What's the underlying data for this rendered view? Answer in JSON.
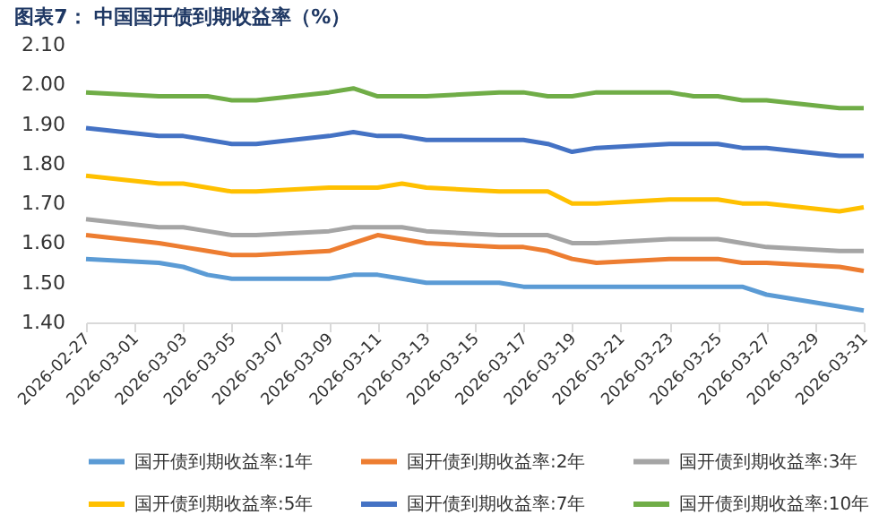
{
  "chart_data": {
    "type": "line",
    "title": "图表7：  中国国开债到期收益率（%）",
    "x": [
      "2026-02-27",
      "2026-03-02",
      "2026-03-03",
      "2026-03-04",
      "2026-03-05",
      "2026-03-06",
      "2026-03-09",
      "2026-03-10",
      "2026-03-11",
      "2026-03-12",
      "2026-03-13",
      "2026-03-16",
      "2026-03-17",
      "2026-03-18",
      "2026-03-19",
      "2026-03-20",
      "2026-03-23",
      "2026-03-24",
      "2026-03-25",
      "2026-03-26",
      "2026-03-27",
      "2026-03-30",
      "2026-03-31"
    ],
    "series": [
      {
        "name": "国开债到期收益率:1年",
        "color": "#5b9bd5",
        "values": [
          1.56,
          1.55,
          1.54,
          1.52,
          1.51,
          1.51,
          1.51,
          1.52,
          1.52,
          1.51,
          1.5,
          1.5,
          1.49,
          1.49,
          1.49,
          1.49,
          1.49,
          1.49,
          1.49,
          1.49,
          1.47,
          1.44,
          1.43
        ]
      },
      {
        "name": "国开债到期收益率:2年",
        "color": "#ed7d31",
        "values": [
          1.62,
          1.6,
          1.59,
          1.58,
          1.57,
          1.57,
          1.58,
          1.6,
          1.62,
          1.61,
          1.6,
          1.59,
          1.59,
          1.58,
          1.56,
          1.55,
          1.56,
          1.56,
          1.56,
          1.55,
          1.55,
          1.54,
          1.53
        ]
      },
      {
        "name": "国开债到期收益率:3年",
        "color": "#a5a5a5",
        "values": [
          1.66,
          1.64,
          1.64,
          1.63,
          1.62,
          1.62,
          1.63,
          1.64,
          1.64,
          1.64,
          1.63,
          1.62,
          1.62,
          1.62,
          1.6,
          1.6,
          1.61,
          1.61,
          1.61,
          1.6,
          1.59,
          1.58,
          1.58
        ]
      },
      {
        "name": "国开债到期收益率:5年",
        "color": "#ffc000",
        "values": [
          1.77,
          1.75,
          1.75,
          1.74,
          1.73,
          1.73,
          1.74,
          1.74,
          1.74,
          1.75,
          1.74,
          1.73,
          1.73,
          1.73,
          1.7,
          1.7,
          1.71,
          1.71,
          1.71,
          1.7,
          1.7,
          1.68,
          1.69
        ]
      },
      {
        "name": "国开债到期收益率:7年",
        "color": "#4472c4",
        "values": [
          1.89,
          1.87,
          1.87,
          1.86,
          1.85,
          1.85,
          1.87,
          1.88,
          1.87,
          1.87,
          1.86,
          1.86,
          1.86,
          1.85,
          1.83,
          1.84,
          1.85,
          1.85,
          1.85,
          1.84,
          1.84,
          1.82,
          1.82
        ]
      },
      {
        "name": "国开债到期收益率:10年",
        "color": "#70ad47",
        "values": [
          1.98,
          1.97,
          1.97,
          1.97,
          1.96,
          1.96,
          1.98,
          1.99,
          1.97,
          1.97,
          1.97,
          1.98,
          1.98,
          1.97,
          1.97,
          1.98,
          1.98,
          1.97,
          1.97,
          1.96,
          1.96,
          1.94,
          1.94
        ]
      }
    ],
    "xlim": [
      "2026-02-27",
      "2026-03-31"
    ],
    "xticks": [
      "2026-02-27",
      "2026-03-01",
      "2026-03-03",
      "2026-03-05",
      "2026-03-07",
      "2026-03-09",
      "2026-03-11",
      "2026-03-13",
      "2026-03-15",
      "2026-03-17",
      "2026-03-19",
      "2026-03-21",
      "2026-03-23",
      "2026-03-25",
      "2026-03-27",
      "2026-03-29",
      "2026-03-31"
    ],
    "ylim": [
      1.4,
      2.1
    ],
    "yticks": [
      {
        "value": 1.4,
        "label": "1.40"
      },
      {
        "value": 1.5,
        "label": "1.50"
      },
      {
        "value": 1.6,
        "label": "1.60"
      },
      {
        "value": 1.7,
        "label": "1.70"
      },
      {
        "value": 1.8,
        "label": "1.80"
      },
      {
        "value": 1.9,
        "label": "1.90"
      },
      {
        "value": 2.0,
        "label": "2.00"
      },
      {
        "value": 2.1,
        "label": "2.10"
      }
    ],
    "grid": false,
    "legend": "bottom",
    "marker": "none",
    "line_style": "solid"
  }
}
